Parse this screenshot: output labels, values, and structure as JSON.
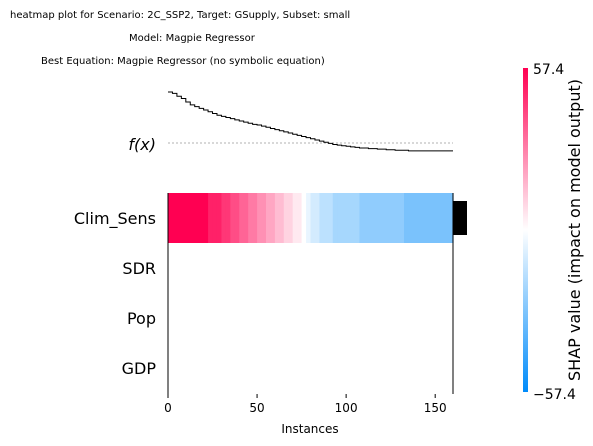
{
  "titles": {
    "line1": "heatmap plot for Scenario: 2C_SSP2, Target: GSupply, Subset: small",
    "line2": "Model: Magpie Regressor",
    "line3": "Best Equation: Magpie Regressor (no symbolic equation)"
  },
  "chart_data": {
    "type": "heatmap",
    "fx_label": "f(x)",
    "xlabel": "Instances",
    "xlim": [
      0,
      160
    ],
    "xticks": [
      0,
      50,
      100,
      150
    ],
    "features": [
      "Clim_Sens",
      "SDR",
      "Pop",
      "GDP"
    ],
    "feature_importance": [
      1.0,
      0,
      0,
      0
    ],
    "colorbar": {
      "label": "SHAP value (impact on model output)",
      "max": 57.4,
      "min": -57.4,
      "max_label": "57.4",
      "min_label": "−57.4",
      "colors": {
        "high": "#ff0052",
        "mid": "#ffffff",
        "low": "#008bfa"
      }
    },
    "shap_clim_sens": [
      57.4,
      57.4,
      57.4,
      57.4,
      57.4,
      57.4,
      57.4,
      57.4,
      57.4,
      50,
      50,
      50,
      45,
      45,
      40,
      40,
      35,
      35,
      30,
      30,
      25,
      25,
      20,
      20,
      15,
      15,
      10,
      10,
      5,
      5,
      0,
      -5,
      -10,
      -10,
      -15,
      -15,
      -15,
      -20,
      -20,
      -20,
      -20,
      -20,
      -20,
      -25,
      -25,
      -25,
      -25,
      -25,
      -25,
      -25,
      -25,
      -25,
      -25,
      -30,
      -30,
      -30,
      -30,
      -30,
      -30,
      -30,
      -30,
      -30,
      -30,
      -30
    ],
    "fx": [
      57.4,
      55,
      50,
      46,
      40,
      35,
      32,
      29,
      26,
      23,
      20,
      17,
      15,
      13,
      11,
      9,
      7,
      5,
      3,
      1,
      0,
      -2,
      -4,
      -6,
      -8,
      -10,
      -12,
      -14,
      -16,
      -18,
      -20,
      -22,
      -24,
      -26,
      -28,
      -30,
      -32,
      -34,
      -35,
      -36,
      -37,
      -38,
      -39,
      -40,
      -40,
      -41,
      -41,
      -42,
      -42,
      -43,
      -43,
      -44,
      -44,
      -44,
      -45,
      -45,
      -45,
      -45,
      -45,
      -45,
      -45,
      -45,
      -45,
      -45
    ],
    "fx_range": [
      -57.4,
      57.4
    ]
  }
}
